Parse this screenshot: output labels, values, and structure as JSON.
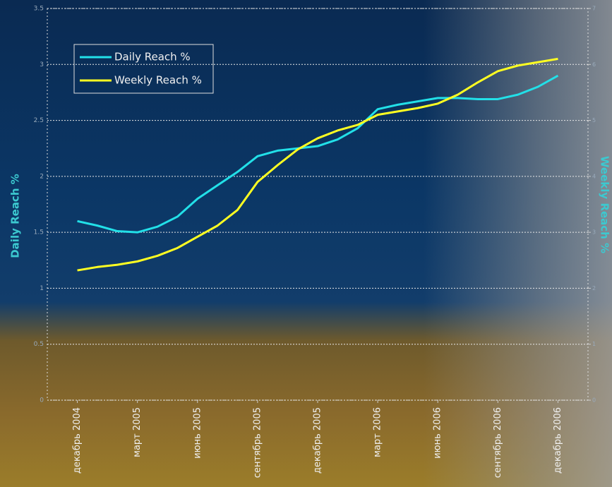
{
  "chart_data": {
    "type": "line",
    "ylabel": "Daily Reach %",
    "y2label": "Weekly Reach %",
    "categories": [
      "декабрь 2004",
      null,
      null,
      "март 2005",
      null,
      null,
      "июнь 2005",
      null,
      null,
      "сентябрь 2005",
      null,
      null,
      "декабрь 2005",
      null,
      null,
      "март 2006",
      null,
      null,
      "июнь 2006",
      null,
      null,
      "сентябрь 2006",
      null,
      null,
      "декабрь 2006"
    ],
    "series": [
      {
        "name": "Daily Reach %",
        "color": "#22e0e8",
        "values": [
          1.6,
          1.56,
          1.51,
          1.5,
          1.55,
          1.64,
          1.8,
          1.92,
          2.04,
          2.18,
          2.23,
          2.25,
          2.27,
          2.33,
          2.43,
          2.6,
          2.64,
          2.67,
          2.7,
          2.7,
          2.69,
          2.69,
          2.73,
          2.8,
          2.9
        ]
      },
      {
        "name": "Weekly Reach %",
        "color": "#ffff22",
        "axis": "y2",
        "values": [
          2.32,
          2.38,
          2.42,
          2.48,
          2.58,
          2.72,
          2.92,
          3.12,
          3.4,
          3.9,
          4.2,
          4.48,
          4.68,
          4.82,
          4.92,
          5.1,
          5.16,
          5.22,
          5.3,
          5.46,
          5.68,
          5.88,
          5.98,
          6.04,
          6.1
        ]
      }
    ],
    "ylim": [
      0,
      3.5
    ],
    "yticks": [
      0,
      0.5,
      1,
      1.5,
      2,
      2.5,
      3,
      3.5
    ],
    "y2lim": [
      0,
      7
    ],
    "y2ticks": [
      0,
      1,
      2,
      3,
      4,
      5,
      6,
      7
    ],
    "grid": true
  }
}
